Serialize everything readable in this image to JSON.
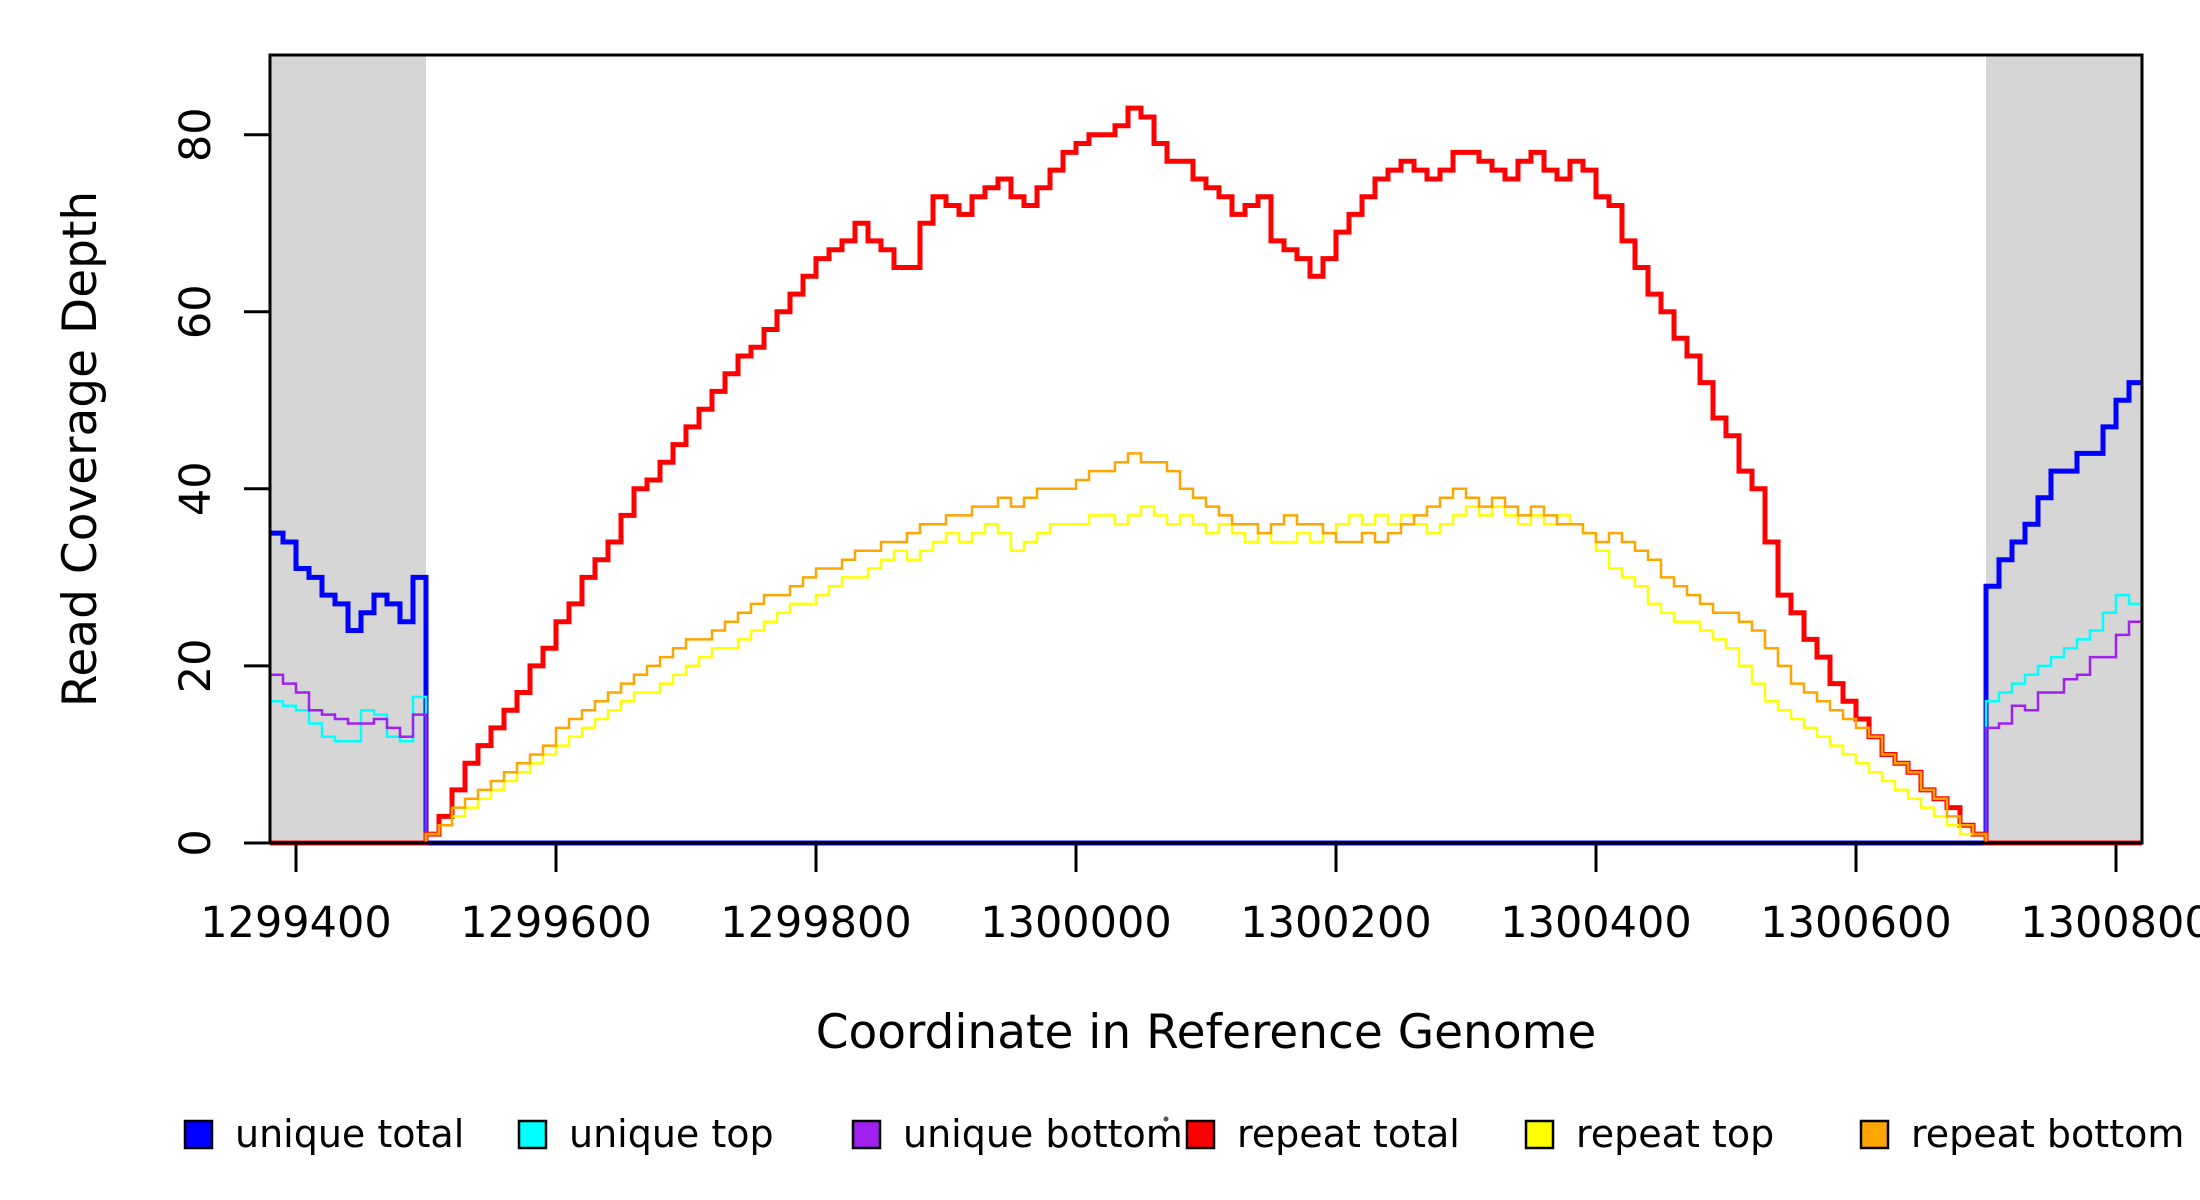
{
  "chart_data": {
    "type": "line",
    "step_interpolation": "step-after",
    "title": "",
    "xlabel": "Coordinate in Reference Genome",
    "ylabel": "Read Coverage Depth",
    "xlim": [
      1299380,
      1300820
    ],
    "ylim": [
      0,
      89
    ],
    "x_ticks": [
      1299400,
      1299600,
      1299800,
      1300000,
      1300200,
      1300400,
      1300600,
      1300800
    ],
    "y_ticks": [
      0,
      20,
      40,
      60,
      80
    ],
    "grid": false,
    "legend_position": "bottom",
    "shade_color": "#d6d6d6",
    "shaded_regions": [
      {
        "label": "masked-left",
        "from": 1299380,
        "to": 1299500
      },
      {
        "label": "masked-right",
        "from": 1300700,
        "to": 1300820
      }
    ],
    "x_start": 1299380,
    "x_step": 10,
    "series": [
      {
        "name": "unique total",
        "color": "#0000ff",
        "line_width": 5,
        "values": [
          35,
          34,
          31,
          30,
          28,
          27,
          24,
          26,
          28,
          27,
          25,
          30,
          0,
          0,
          0,
          0,
          0,
          0,
          0,
          0,
          0,
          0,
          0,
          0,
          0,
          0,
          0,
          0,
          0,
          0,
          0,
          0,
          0,
          0,
          0,
          0,
          0,
          0,
          0,
          0,
          0,
          0,
          0,
          0,
          0,
          0,
          0,
          0,
          0,
          0,
          0,
          0,
          0,
          0,
          0,
          0,
          0,
          0,
          0,
          0,
          0,
          0,
          0,
          0,
          0,
          0,
          0,
          0,
          0,
          0,
          0,
          0,
          0,
          0,
          0,
          0,
          0,
          0,
          0,
          0,
          0,
          0,
          0,
          0,
          0,
          0,
          0,
          0,
          0,
          0,
          0,
          0,
          0,
          0,
          0,
          0,
          0,
          0,
          0,
          0,
          0,
          0,
          0,
          0,
          0,
          0,
          0,
          0,
          0,
          0,
          0,
          0,
          0,
          0,
          0,
          0,
          0,
          0,
          0,
          0,
          0,
          0,
          0,
          0,
          0,
          0,
          0,
          0,
          0,
          0,
          0,
          0,
          29,
          32,
          34,
          36,
          39,
          42,
          42,
          44,
          44,
          47,
          50,
          52,
          52
        ]
      },
      {
        "name": "unique top",
        "color": "#00ffff",
        "line_width": 2.5,
        "values": [
          16,
          15.5,
          15,
          13.5,
          12,
          11.5,
          11.5,
          15,
          14.5,
          12,
          11.5,
          16.5,
          0,
          0,
          0,
          0,
          0,
          0,
          0,
          0,
          0,
          0,
          0,
          0,
          0,
          0,
          0,
          0,
          0,
          0,
          0,
          0,
          0,
          0,
          0,
          0,
          0,
          0,
          0,
          0,
          0,
          0,
          0,
          0,
          0,
          0,
          0,
          0,
          0,
          0,
          0,
          0,
          0,
          0,
          0,
          0,
          0,
          0,
          0,
          0,
          0,
          0,
          0,
          0,
          0,
          0,
          0,
          0,
          0,
          0,
          0,
          0,
          0,
          0,
          0,
          0,
          0,
          0,
          0,
          0,
          0,
          0,
          0,
          0,
          0,
          0,
          0,
          0,
          0,
          0,
          0,
          0,
          0,
          0,
          0,
          0,
          0,
          0,
          0,
          0,
          0,
          0,
          0,
          0,
          0,
          0,
          0,
          0,
          0,
          0,
          0,
          0,
          0,
          0,
          0,
          0,
          0,
          0,
          0,
          0,
          0,
          0,
          0,
          0,
          0,
          0,
          0,
          0,
          0,
          0,
          0,
          0,
          16,
          17,
          18,
          19,
          20,
          21,
          22,
          23,
          24,
          26,
          28,
          27,
          27
        ]
      },
      {
        "name": "unique bottom",
        "color": "#a020f0",
        "line_width": 2.5,
        "values": [
          19,
          18,
          17,
          15,
          14.5,
          14,
          13.5,
          13.5,
          14,
          13,
          12,
          14.5,
          0,
          0,
          0,
          0,
          0,
          0,
          0,
          0,
          0,
          0,
          0,
          0,
          0,
          0,
          0,
          0,
          0,
          0,
          0,
          0,
          0,
          0,
          0,
          0,
          0,
          0,
          0,
          0,
          0,
          0,
          0,
          0,
          0,
          0,
          0,
          0,
          0,
          0,
          0,
          0,
          0,
          0,
          0,
          0,
          0,
          0,
          0,
          0,
          0,
          0,
          0,
          0,
          0,
          0,
          0,
          0,
          0,
          0,
          0,
          0,
          0,
          0,
          0,
          0,
          0,
          0,
          0,
          0,
          0,
          0,
          0,
          0,
          0,
          0,
          0,
          0,
          0,
          0,
          0,
          0,
          0,
          0,
          0,
          0,
          0,
          0,
          0,
          0,
          0,
          0,
          0,
          0,
          0,
          0,
          0,
          0,
          0,
          0,
          0,
          0,
          0,
          0,
          0,
          0,
          0,
          0,
          0,
          0,
          0,
          0,
          0,
          0,
          0,
          0,
          0,
          0,
          0,
          0,
          0,
          0,
          13,
          13.5,
          15.5,
          15,
          17,
          17,
          18.5,
          19,
          21,
          21,
          23.5,
          25,
          25
        ]
      },
      {
        "name": "repeat total",
        "color": "#ff0000",
        "line_width": 5,
        "values": [
          0,
          0,
          0,
          0,
          0,
          0,
          0,
          0,
          0,
          0,
          0,
          0,
          1,
          3,
          6,
          9,
          11,
          13,
          15,
          17,
          20,
          22,
          25,
          27,
          30,
          32,
          34,
          37,
          40,
          41,
          43,
          45,
          47,
          49,
          51,
          53,
          55,
          56,
          58,
          60,
          62,
          64,
          66,
          67,
          68,
          70,
          68,
          67,
          65,
          65,
          70,
          73,
          72,
          71,
          73,
          74,
          75,
          73,
          72,
          74,
          76,
          78,
          79,
          80,
          80,
          81,
          83,
          82,
          79,
          77,
          77,
          75,
          74,
          73,
          71,
          72,
          73,
          68,
          67,
          66,
          64,
          66,
          69,
          71,
          73,
          75,
          76,
          77,
          76,
          75,
          76,
          78,
          78,
          77,
          76,
          75,
          77,
          78,
          76,
          75,
          77,
          76,
          73,
          72,
          68,
          65,
          62,
          60,
          57,
          55,
          52,
          48,
          46,
          42,
          40,
          34,
          28,
          26,
          23,
          21,
          18,
          16,
          14,
          12,
          10,
          9,
          8,
          6,
          5,
          4,
          2,
          1,
          0,
          0,
          0,
          0,
          0,
          0,
          0,
          0,
          0,
          0,
          0,
          0,
          0
        ]
      },
      {
        "name": "repeat top",
        "color": "#ffff00",
        "line_width": 2.5,
        "values": [
          0,
          0,
          0,
          0,
          0,
          0,
          0,
          0,
          0,
          0,
          0,
          0,
          1,
          2,
          3,
          4,
          5,
          6,
          7,
          8,
          9,
          10,
          11,
          12,
          13,
          14,
          15,
          16,
          17,
          17,
          18,
          19,
          20,
          21,
          22,
          22,
          23,
          24,
          25,
          26,
          27,
          27,
          28,
          29,
          30,
          30,
          31,
          32,
          33,
          32,
          33,
          34,
          35,
          34,
          35,
          36,
          35,
          33,
          34,
          35,
          36,
          36,
          36,
          37,
          37,
          36,
          37,
          38,
          37,
          36,
          37,
          36,
          35,
          36,
          35,
          34,
          35,
          34,
          34,
          35,
          34,
          35,
          36,
          37,
          36,
          37,
          36,
          37,
          36,
          35,
          36,
          37,
          38,
          37,
          38,
          37,
          36,
          37,
          36,
          37,
          36,
          35,
          33,
          31,
          30,
          29,
          27,
          26,
          25,
          25,
          24,
          23,
          22,
          20,
          18,
          16,
          15,
          14,
          13,
          12,
          11,
          10,
          9,
          8,
          7,
          6,
          5,
          4,
          3,
          2,
          1,
          1,
          0,
          0,
          0,
          0,
          0,
          0,
          0,
          0,
          0,
          0,
          0,
          0,
          0
        ]
      },
      {
        "name": "repeat bottom",
        "color": "#ffa500",
        "line_width": 2.5,
        "values": [
          0,
          0,
          0,
          0,
          0,
          0,
          0,
          0,
          0,
          0,
          0,
          0,
          1,
          2,
          4,
          5,
          6,
          7,
          8,
          9,
          10,
          11,
          13,
          14,
          15,
          16,
          17,
          18,
          19,
          20,
          21,
          22,
          23,
          23,
          24,
          25,
          26,
          27,
          28,
          28,
          29,
          30,
          31,
          31,
          32,
          33,
          33,
          34,
          34,
          35,
          36,
          36,
          37,
          37,
          38,
          38,
          39,
          38,
          39,
          40,
          40,
          40,
          41,
          42,
          42,
          43,
          44,
          43,
          43,
          42,
          40,
          39,
          38,
          37,
          36,
          36,
          35,
          36,
          37,
          36,
          36,
          35,
          34,
          34,
          35,
          34,
          35,
          36,
          37,
          38,
          39,
          40,
          39,
          38,
          39,
          38,
          37,
          38,
          37,
          36,
          36,
          35,
          34,
          35,
          34,
          33,
          32,
          30,
          29,
          28,
          27,
          26,
          26,
          25,
          24,
          22,
          20,
          18,
          17,
          16,
          15,
          14,
          13,
          12,
          10,
          9,
          8,
          6,
          5,
          3,
          2,
          1,
          0,
          0,
          0,
          0,
          0,
          0,
          0,
          0,
          0,
          0,
          0,
          0,
          0
        ]
      }
    ]
  }
}
